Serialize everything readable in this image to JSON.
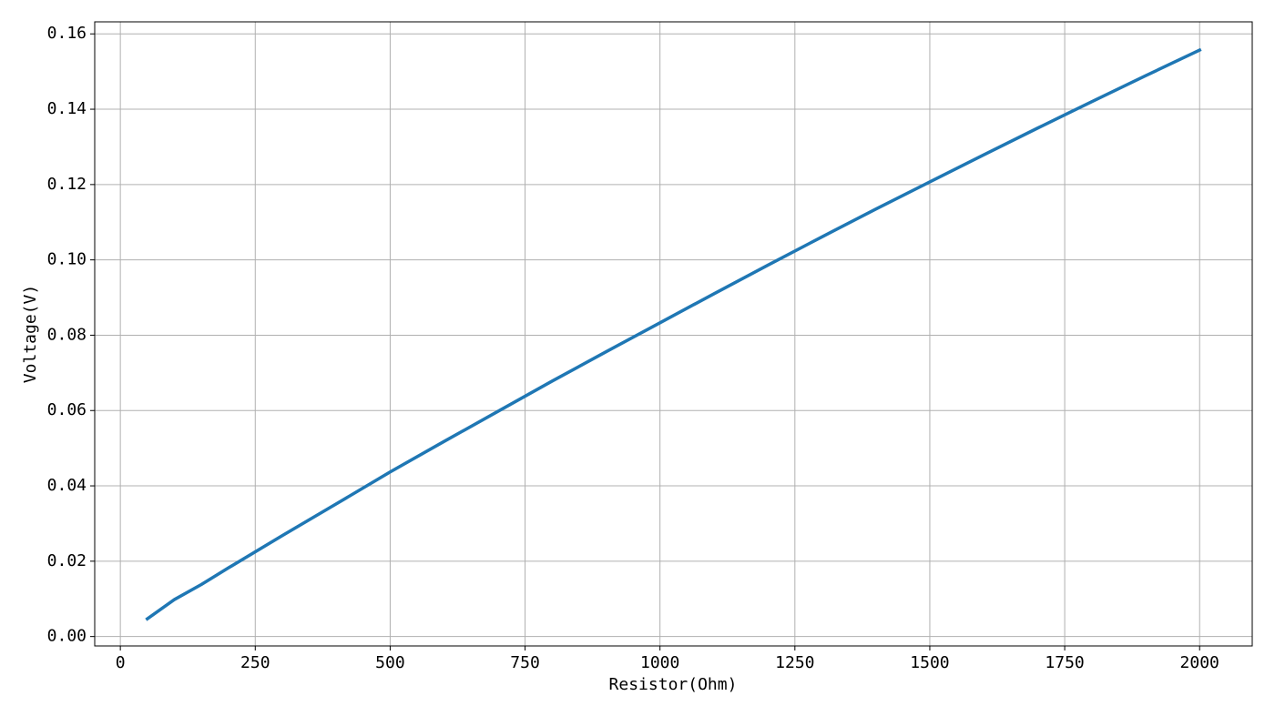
{
  "chart_data": {
    "type": "line",
    "x_label": "Resistor(Ohm)",
    "y_label": "Voltage(V)",
    "x": [
      50,
      100,
      150,
      200,
      300,
      400,
      500,
      600,
      700,
      800,
      900,
      1000,
      1100,
      1200,
      1300,
      1400,
      1500,
      1600,
      1700,
      1800,
      1900,
      2000
    ],
    "series": [
      {
        "color": "#1f77b4",
        "values": [
          0.0047,
          0.0098,
          0.0138,
          0.0182,
          0.0268,
          0.0352,
          0.0437,
          0.0518,
          0.0598,
          0.0678,
          0.0756,
          0.0833,
          0.091,
          0.0986,
          0.1061,
          0.1135,
          0.1207,
          0.1279,
          0.135,
          0.142,
          0.1489,
          0.1557
        ]
      }
    ],
    "xlim": [
      -47.5,
      2097.5
    ],
    "ylim": [
      -0.0025,
      0.1632
    ],
    "xticks": [
      0,
      250,
      500,
      750,
      1000,
      1250,
      1500,
      1750,
      2000
    ],
    "yticks": [
      {
        "value": 0,
        "label": "0.00"
      },
      {
        "value": 0.02,
        "label": "0.02"
      },
      {
        "value": 0.04,
        "label": "0.04"
      },
      {
        "value": 0.06,
        "label": "0.06"
      },
      {
        "value": 0.08,
        "label": "0.08"
      },
      {
        "value": 0.1,
        "label": "0.10"
      },
      {
        "value": 0.12,
        "label": "0.12"
      },
      {
        "value": 0.14,
        "label": "0.14"
      },
      {
        "value": 0.16,
        "label": "0.16"
      }
    ],
    "grid": true
  }
}
